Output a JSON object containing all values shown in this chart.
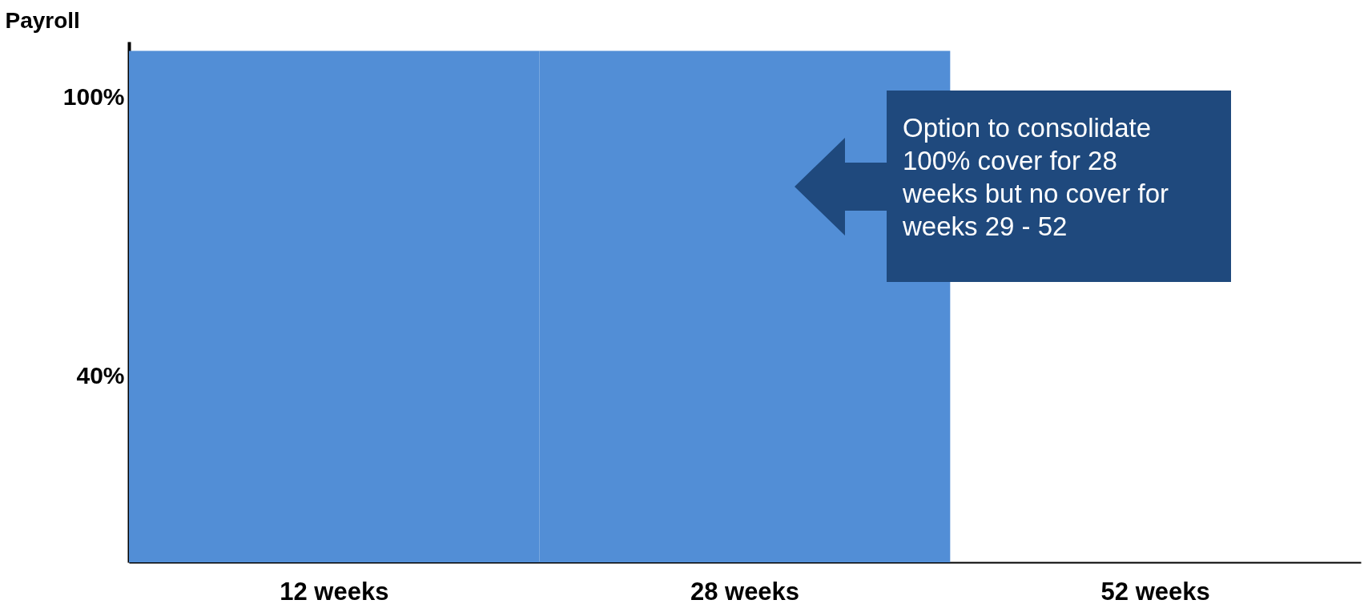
{
  "chart_data": {
    "type": "bar",
    "ylabel": "Payroll",
    "categories": [
      "12 weeks",
      "28 weeks",
      "52 weeks"
    ],
    "values": [
      110,
      110,
      null
    ],
    "color": "#528ed6",
    "ylim": [
      0,
      112
    ],
    "yticks": [
      {
        "value": 40,
        "label": "40%"
      },
      {
        "value": 100,
        "label": "100%"
      }
    ],
    "annotations": [
      "Option to consolidate 100% cover for 28 weeks but no cover for weeks 29 - 52"
    ]
  }
}
